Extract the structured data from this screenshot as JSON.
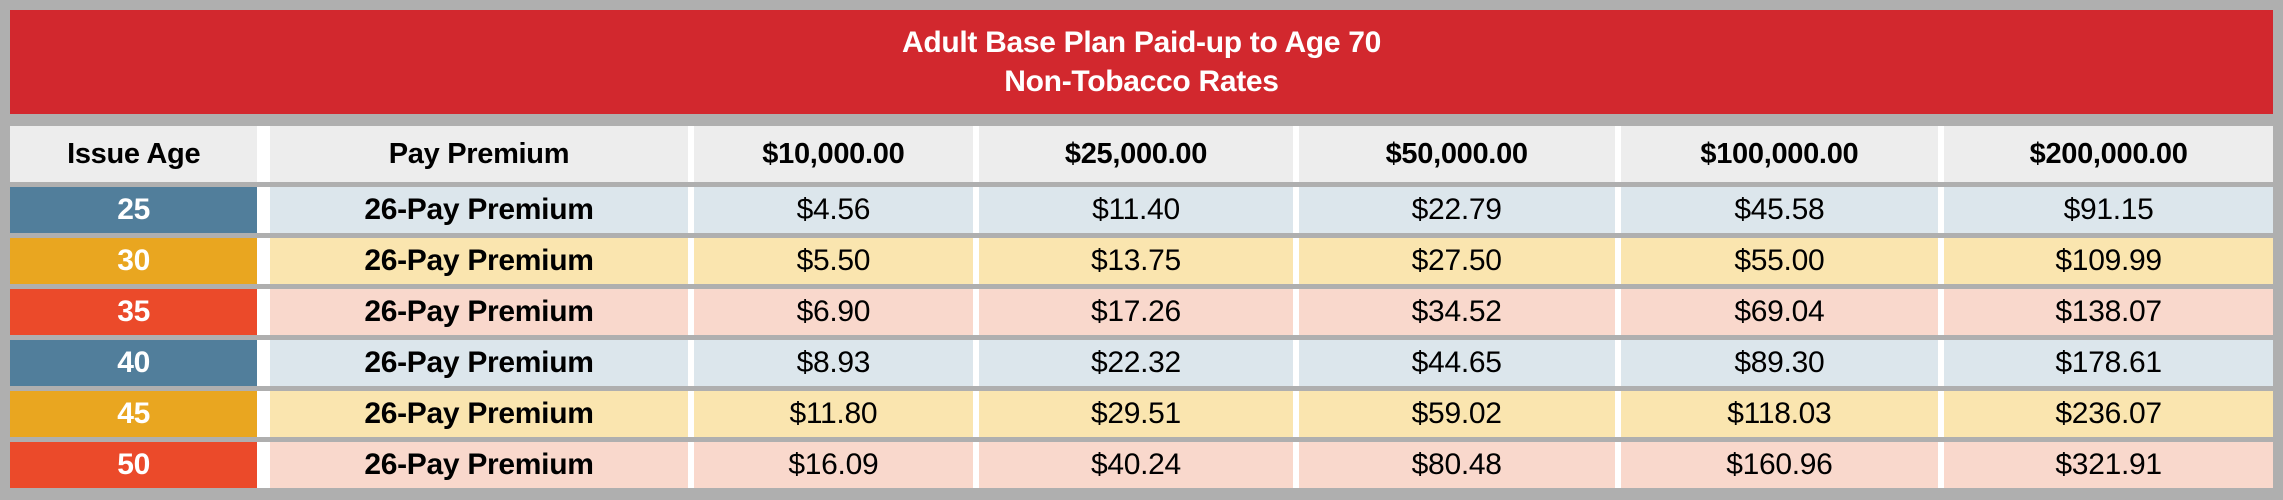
{
  "banner": {
    "title_line1": "Adult Base Plan Paid-up to Age 70",
    "title_line2": "Non-Tobacco Rates"
  },
  "table": {
    "columns": {
      "issue_age": "Issue Age",
      "pay_premium": "Pay Premium",
      "band1": "$10,000.00",
      "band2": "$25,000.00",
      "band3": "$50,000.00",
      "band4": "$100,000.00",
      "band5": "$200,000.00"
    },
    "rows": [
      {
        "age": "25",
        "pay": "26-Pay Premium",
        "values": [
          "$4.56",
          "$11.40",
          "$22.79",
          "$45.58",
          "$91.15"
        ],
        "theme": "blue"
      },
      {
        "age": "30",
        "pay": "26-Pay Premium",
        "values": [
          "$5.50",
          "$13.75",
          "$27.50",
          "$55.00",
          "$109.99"
        ],
        "theme": "gold"
      },
      {
        "age": "35",
        "pay": "26-Pay Premium",
        "values": [
          "$6.90",
          "$17.26",
          "$34.52",
          "$69.04",
          "$138.07"
        ],
        "theme": "red"
      },
      {
        "age": "40",
        "pay": "26-Pay Premium",
        "values": [
          "$8.93",
          "$22.32",
          "$44.65",
          "$89.30",
          "$178.61"
        ],
        "theme": "blue"
      },
      {
        "age": "45",
        "pay": "26-Pay Premium",
        "values": [
          "$11.80",
          "$29.51",
          "$59.02",
          "$118.03",
          "$236.07"
        ],
        "theme": "gold"
      },
      {
        "age": "50",
        "pay": "26-Pay Premium",
        "values": [
          "$16.09",
          "$40.24",
          "$80.48",
          "$160.96",
          "$321.91"
        ],
        "theme": "red"
      }
    ]
  },
  "colors": {
    "banner_red": "#D2282E",
    "frame_gray": "#AFAFAF",
    "header_bg": "#EDEDED",
    "age_blue": "#517E9B",
    "age_gold": "#E9A620",
    "age_red": "#EB4A2A",
    "row_blue": "#DCE6EC",
    "row_gold": "#FAE5AF",
    "row_red": "#F9D8CC"
  }
}
